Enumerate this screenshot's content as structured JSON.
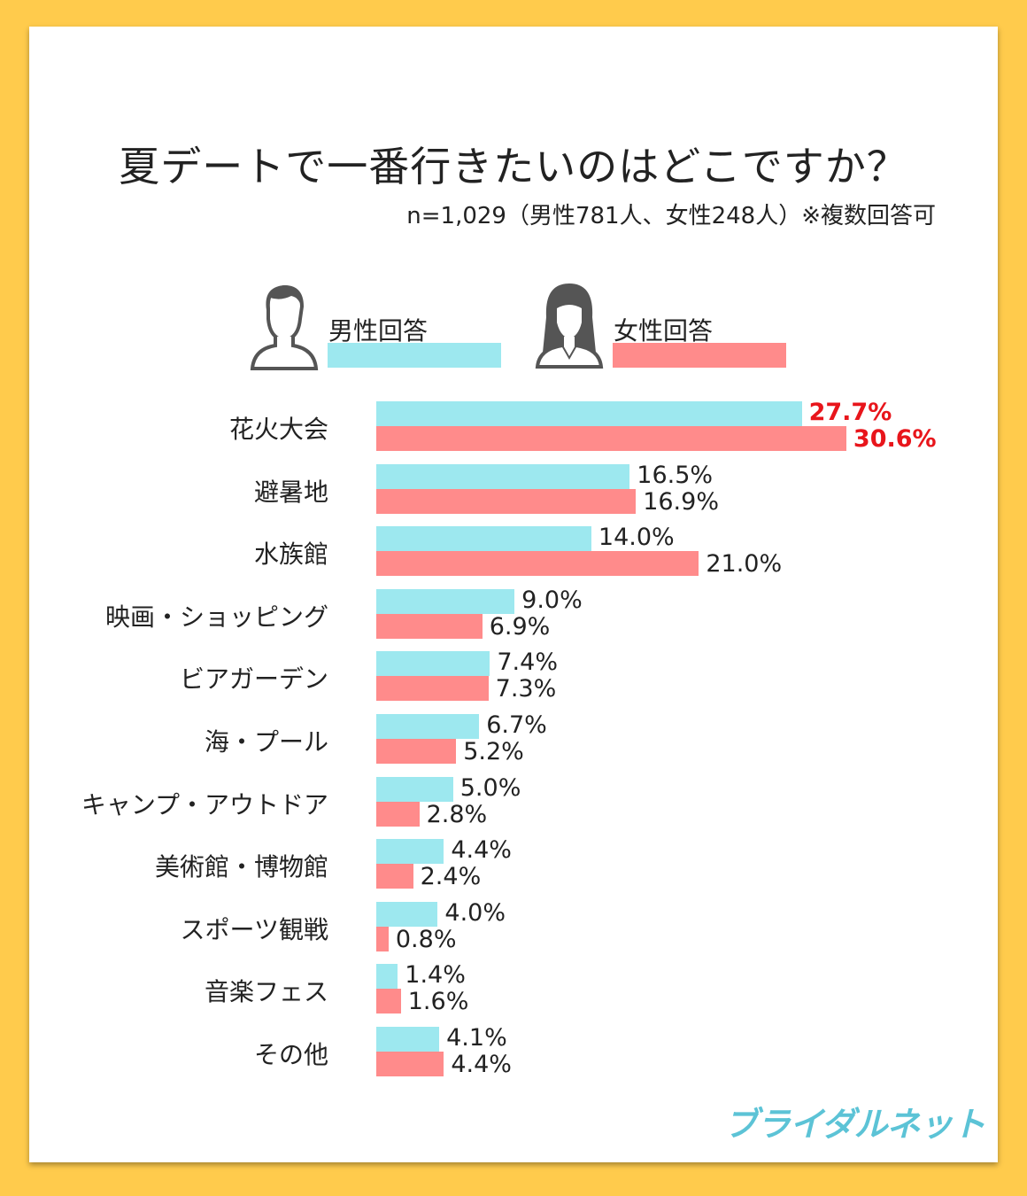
{
  "chart_data": {
    "type": "bar",
    "orientation": "horizontal",
    "title": "夏デートで一番行きたいのはどこですか？",
    "subtitle": "n=1,029（男性781人、女性248人）※複数回答可",
    "unit": "%",
    "categories": [
      "花火大会",
      "避暑地",
      "水族館",
      "映画・ショッピング",
      "ビアガーデン",
      "海・プール",
      "キャンプ・アウトドア",
      "美術館・博物館",
      "スポーツ観戦",
      "音楽フェス",
      "その他"
    ],
    "series": [
      {
        "name": "男性回答",
        "color": "#9DE8EF",
        "values": [
          27.7,
          16.5,
          14.0,
          9.0,
          7.4,
          6.7,
          5.0,
          4.4,
          4.0,
          1.4,
          4.1
        ],
        "labels": [
          "27.7%",
          "16.5%",
          "14.0%",
          "9.0%",
          "7.4%",
          "6.7%",
          "5.0%",
          "4.4%",
          "4.0%",
          "1.4%",
          "4.1%"
        ]
      },
      {
        "name": "女性回答",
        "color": "#FF8B8B",
        "values": [
          30.6,
          16.9,
          21.0,
          6.9,
          7.3,
          5.2,
          2.8,
          2.4,
          0.8,
          1.6,
          4.4
        ],
        "labels": [
          "30.6%",
          "16.9%",
          "21.0%",
          "6.9%",
          "7.3%",
          "5.2%",
          "2.8%",
          "2.4%",
          "0.8%",
          "1.6%",
          "4.4%"
        ]
      }
    ],
    "highlight_color": "#E8151B",
    "highlight_category_index": 0,
    "legend_placement": "top",
    "grid": false
  },
  "legend": {
    "male": "男性回答",
    "female": "女性回答",
    "male_icon": "man-avatar-icon",
    "female_icon": "woman-avatar-icon"
  },
  "logo": "ブライダルネット",
  "colors": {
    "border": "#FFCB4C",
    "male": "#9DE8EF",
    "female": "#FF8B8B",
    "logo": "#5CC3D6"
  }
}
